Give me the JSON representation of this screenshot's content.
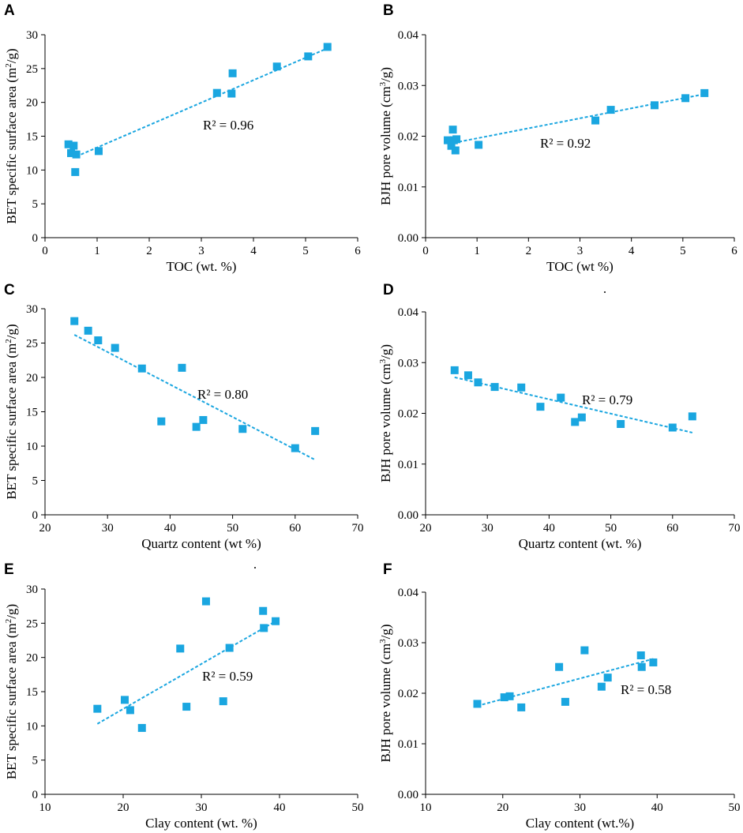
{
  "chart_data": [
    {
      "panel": "A",
      "type": "scatter",
      "xlabel": "TOC (wt. %)",
      "ylabel": "BET specific surface area (m²/g)",
      "xlim": [
        0,
        6
      ],
      "ylim": [
        0,
        30
      ],
      "xticks": [
        "0",
        "1",
        "2",
        "3",
        "4",
        "5",
        "6"
      ],
      "yticks": [
        "0",
        "5",
        "10",
        "15",
        "20",
        "25",
        "30"
      ],
      "x": [
        0.45,
        0.5,
        0.55,
        0.58,
        0.6,
        1.03,
        3.3,
        3.58,
        3.6,
        4.45,
        5.05,
        5.42
      ],
      "y": [
        13.8,
        12.5,
        13.6,
        9.7,
        12.3,
        12.8,
        21.4,
        21.3,
        24.3,
        25.3,
        26.8,
        28.2
      ],
      "trend": {
        "x": [
          0.6,
          5.42
        ],
        "y": [
          12.0,
          28.0
        ]
      },
      "annotation": "R² = 0.96"
    },
    {
      "panel": "B",
      "type": "scatter",
      "xlabel": "TOC (wt  %)",
      "ylabel": "BJH pore volume (cm³/g)",
      "xlim": [
        0,
        6
      ],
      "ylim": [
        0,
        0.04
      ],
      "xticks": [
        "0",
        "1",
        "2",
        "3",
        "4",
        "5",
        "6"
      ],
      "yticks": [
        "0.00",
        "0.01",
        "0.02",
        "0.03",
        "0.04"
      ],
      "x": [
        0.43,
        0.5,
        0.53,
        0.55,
        0.58,
        0.6,
        1.03,
        3.3,
        3.6,
        4.45,
        5.05,
        5.42
      ],
      "y": [
        0.0192,
        0.0181,
        0.0213,
        0.0192,
        0.0172,
        0.0194,
        0.0183,
        0.0231,
        0.0252,
        0.0261,
        0.0275,
        0.0285
      ],
      "trend": {
        "x": [
          0.45,
          5.42
        ],
        "y": [
          0.0185,
          0.0283
        ]
      },
      "annotation": "R² = 0.92"
    },
    {
      "panel": "C",
      "type": "scatter",
      "xlabel": "Quartz content (wt  %)",
      "ylabel": "BET specific surface area (m²/g)",
      "xlim": [
        20,
        70
      ],
      "ylim": [
        0,
        30
      ],
      "xticks": [
        "20",
        "30",
        "40",
        "50",
        "60",
        "70"
      ],
      "yticks": [
        "0",
        "5",
        "10",
        "15",
        "20",
        "25",
        "30"
      ],
      "x": [
        24.7,
        26.9,
        28.5,
        31.2,
        35.5,
        38.6,
        41.9,
        44.2,
        45.3,
        51.6,
        60.0,
        63.2
      ],
      "y": [
        28.2,
        26.8,
        25.4,
        24.3,
        21.3,
        13.6,
        21.4,
        12.8,
        13.8,
        12.5,
        9.7,
        12.2
      ],
      "trend": {
        "x": [
          24.7,
          63.2
        ],
        "y": [
          26.2,
          8.0
        ]
      },
      "annotation": "R² = 0.80"
    },
    {
      "panel": "D",
      "type": "scatter",
      "xlabel": "Quartz content (wt. %)",
      "ylabel": "BJH pore volume (cm³/g)",
      "xlim": [
        20,
        70
      ],
      "ylim": [
        0,
        0.04
      ],
      "xticks": [
        "20",
        "30",
        "40",
        "50",
        "60",
        "70"
      ],
      "yticks": [
        "0.00",
        "0.01",
        "0.02",
        "0.03",
        "0.04"
      ],
      "x": [
        24.7,
        26.9,
        28.5,
        31.2,
        35.5,
        38.6,
        41.9,
        44.2,
        45.3,
        51.6,
        60.0,
        63.2
      ],
      "y": [
        0.0285,
        0.0275,
        0.0261,
        0.0252,
        0.0251,
        0.0213,
        0.0231,
        0.0183,
        0.0192,
        0.0179,
        0.0172,
        0.0194
      ],
      "trend": {
        "x": [
          24.7,
          63.2
        ],
        "y": [
          0.0271,
          0.0162
        ]
      },
      "annotation": "R² = 0.79"
    },
    {
      "panel": "E",
      "type": "scatter",
      "xlabel": "Clay content (wt. %)",
      "ylabel": "BET specific surface area (m²/g)",
      "xlim": [
        10,
        50
      ],
      "ylim": [
        0,
        30
      ],
      "xticks": [
        "10",
        "20",
        "30",
        "40",
        "50"
      ],
      "yticks": [
        "0",
        "5",
        "10",
        "15",
        "20",
        "25",
        "30"
      ],
      "x": [
        16.7,
        20.2,
        20.9,
        22.4,
        27.3,
        28.1,
        30.6,
        32.8,
        33.6,
        37.9,
        38.0,
        39.5
      ],
      "y": [
        12.5,
        13.8,
        12.3,
        9.7,
        21.3,
        12.8,
        28.2,
        13.6,
        21.4,
        26.8,
        24.3,
        25.3
      ],
      "trend": {
        "x": [
          16.7,
          39.5
        ],
        "y": [
          10.3,
          25.3
        ]
      },
      "annotation": "R² = 0.59"
    },
    {
      "panel": "F",
      "type": "scatter",
      "xlabel": "Clay content  (wt.%)",
      "ylabel": "BJH pore volume (cm³/g)",
      "xlim": [
        10,
        50
      ],
      "ylim": [
        0,
        0.04
      ],
      "xticks": [
        "10",
        "20",
        "30",
        "40",
        "50"
      ],
      "yticks": [
        "0.00",
        "0.01",
        "0.02",
        "0.03",
        "0.04"
      ],
      "x": [
        16.7,
        20.2,
        20.9,
        22.4,
        27.3,
        28.1,
        30.6,
        32.8,
        33.6,
        37.9,
        38.0,
        39.5
      ],
      "y": [
        0.0179,
        0.0192,
        0.0194,
        0.0172,
        0.0252,
        0.0183,
        0.0285,
        0.0213,
        0.0231,
        0.0275,
        0.0252,
        0.0261
      ],
      "trend": {
        "x": [
          16.7,
          39.5
        ],
        "y": [
          0.0175,
          0.0268
        ]
      },
      "annotation": "R² = 0.58"
    }
  ]
}
